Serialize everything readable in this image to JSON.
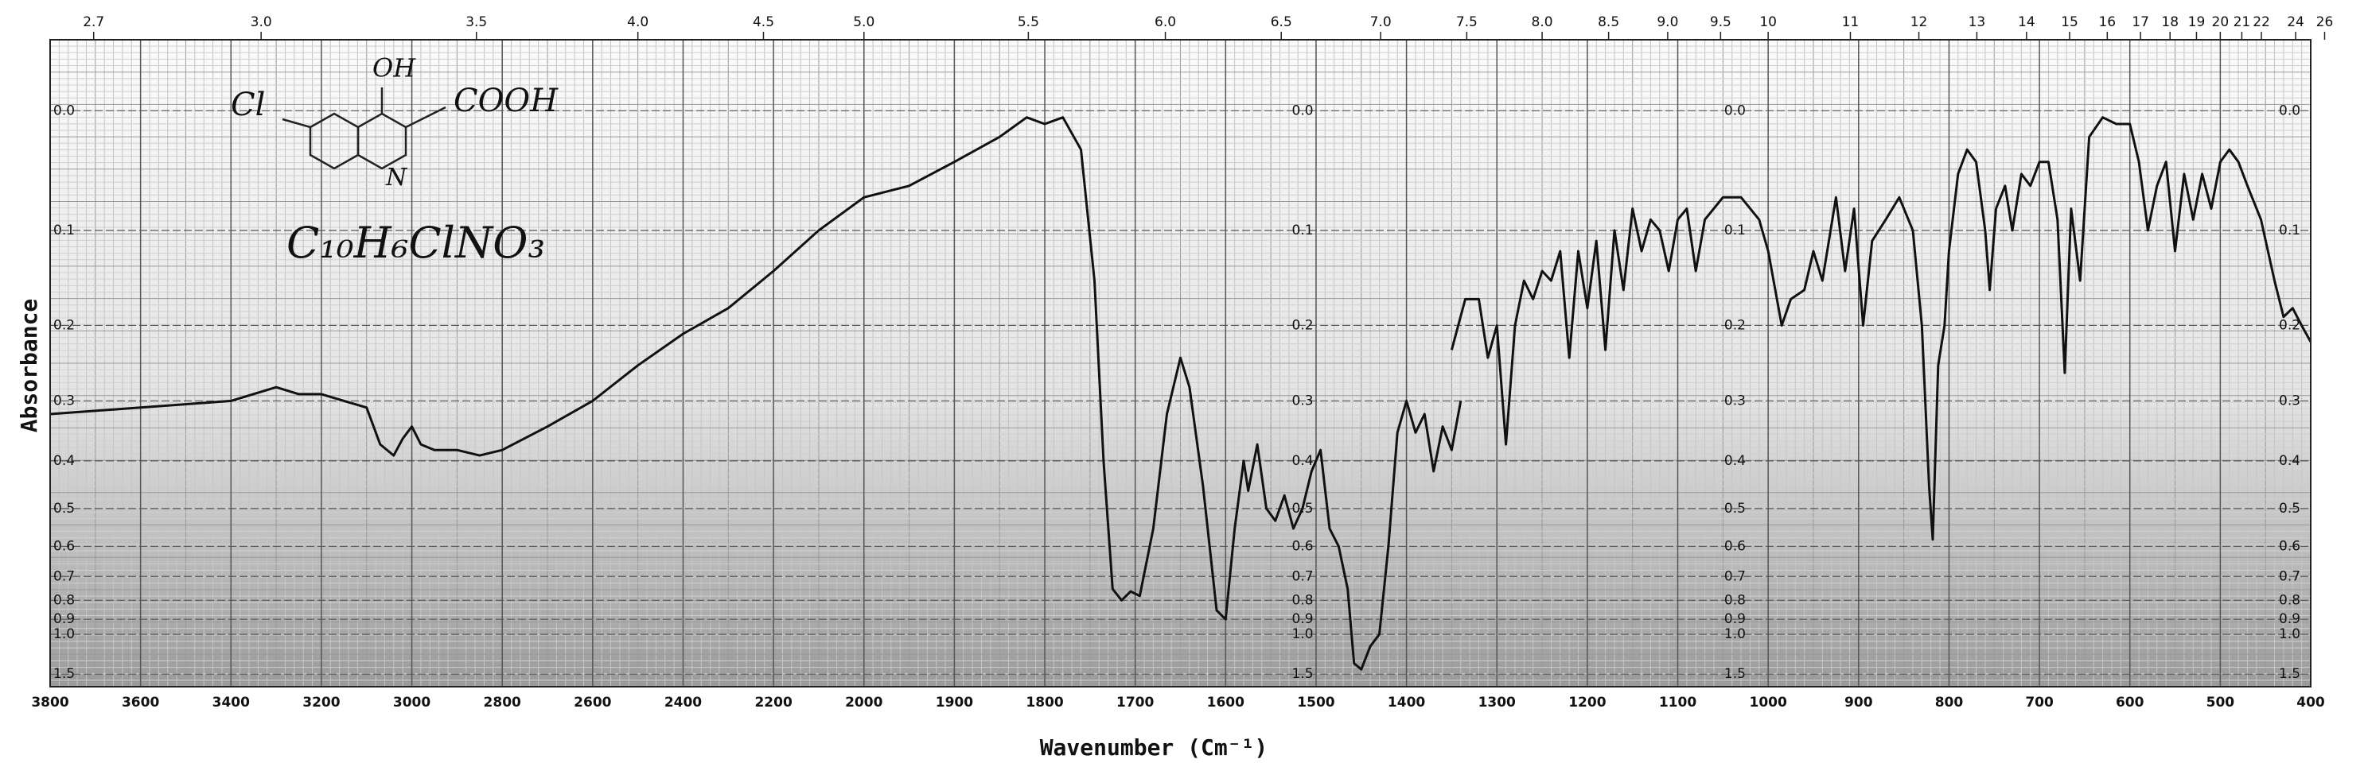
{
  "chart_data": {
    "type": "line",
    "xlabel": "Wavenumber (Cm⁻¹)",
    "ylabel": "Absorbance",
    "annotation": "C₁₀H₆ClNO₃",
    "structure_labels": [
      "Cl",
      "OH",
      "COOH",
      "N"
    ],
    "yscale": "absorbance",
    "grid": true,
    "color": "#111111",
    "xlim": [
      3800,
      400
    ],
    "xticks": [
      3800,
      3600,
      3400,
      3200,
      3000,
      2800,
      2600,
      2400,
      2200,
      2000,
      1900,
      1800,
      1700,
      1600,
      1500,
      1400,
      1300,
      1200,
      1100,
      1000,
      900,
      800,
      700,
      600,
      500,
      400
    ],
    "x2ticks": [
      2.7,
      {
        "value": 3,
        "label": "3.0"
      },
      3.5,
      {
        "value": 4,
        "label": "4.0"
      },
      4.5,
      {
        "value": 5,
        "label": "5.0"
      },
      5.5,
      {
        "value": 6,
        "label": "6.0"
      },
      6.5,
      {
        "value": 7,
        "label": "7.0"
      },
      7.5,
      {
        "value": 8,
        "label": "8.0"
      },
      8.5,
      {
        "value": 9,
        "label": "9.0"
      },
      9.5,
      10,
      11,
      12,
      13,
      14,
      15,
      16,
      17,
      18,
      19,
      20,
      21,
      22,
      24,
      26
    ],
    "ylim": [
      2,
      -0.05
    ],
    "yticks": [
      {
        "value": 0,
        "label": "0.0"
      },
      0.1,
      0.2,
      0.3,
      0.4,
      0.5,
      0.6,
      0.7,
      0.8,
      0.9,
      {
        "value": 1,
        "label": "1.0"
      },
      1.5
    ],
    "x": [
      3800,
      3600,
      3400,
      3300,
      3250,
      3200,
      3150,
      3100,
      3070,
      3040,
      3020,
      3000,
      2980,
      2950,
      2900,
      2850,
      2800,
      2700,
      2600,
      2500,
      2400,
      2300,
      2200,
      2100,
      2000,
      1950,
      1900,
      1850,
      1820,
      1800,
      1780,
      1760,
      1745,
      1735,
      1725,
      1715,
      1705,
      1695,
      1680,
      1665,
      1650,
      1640,
      1625,
      1610,
      1600,
      1590,
      1580,
      1575,
      1565,
      1555,
      1545,
      1535,
      1525,
      1515,
      1505,
      1495,
      1485,
      1475,
      1465,
      1458,
      1450,
      1440,
      1430,
      1420,
      1410,
      1400,
      1390,
      1380,
      1370,
      1360,
      1350,
      1340,
      1345,
      1350,
      1335,
      1320,
      1310,
      1300,
      1290,
      1280,
      1270,
      1260,
      1250,
      1240,
      1230,
      1220,
      1210,
      1200,
      1190,
      1180,
      1170,
      1160,
      1150,
      1140,
      1130,
      1120,
      1110,
      1100,
      1090,
      1080,
      1070,
      1050,
      1030,
      1010,
      1000,
      985,
      975,
      960,
      950,
      940,
      925,
      915,
      905,
      895,
      885,
      870,
      855,
      840,
      830,
      822,
      818,
      812,
      805,
      800,
      790,
      780,
      770,
      760,
      755,
      748,
      738,
      730,
      720,
      710,
      700,
      690,
      680,
      672,
      665,
      655,
      645,
      630,
      615,
      600,
      590,
      580,
      570,
      560,
      550,
      540,
      530,
      520,
      510,
      500,
      490,
      480,
      470,
      455,
      440,
      430,
      420,
      410,
      400
    ],
    "values": [
      0.32,
      0.31,
      0.3,
      0.28,
      0.29,
      0.29,
      0.3,
      0.31,
      0.37,
      0.39,
      0.36,
      0.34,
      0.37,
      0.38,
      0.38,
      0.39,
      0.38,
      0.34,
      0.3,
      0.25,
      0.21,
      0.18,
      0.14,
      0.1,
      0.07,
      0.06,
      0.04,
      0.02,
      0.005,
      0.01,
      0.005,
      0.03,
      0.15,
      0.4,
      0.75,
      0.8,
      0.76,
      0.78,
      0.55,
      0.32,
      0.24,
      0.28,
      0.45,
      0.85,
      0.9,
      0.55,
      0.4,
      0.46,
      0.37,
      0.5,
      0.53,
      0.47,
      0.55,
      0.5,
      0.42,
      0.38,
      0.55,
      0.6,
      0.75,
      1.3,
      1.4,
      1.1,
      1.0,
      0.6,
      0.35,
      0.3,
      0.35,
      0.32,
      0.42,
      0.34,
      0.38,
      0.3,
      null,
      0.23,
      0.17,
      0.17,
      0.24,
      0.2,
      0.37,
      0.2,
      0.15,
      0.17,
      0.14,
      0.15,
      0.12,
      0.24,
      0.12,
      0.18,
      0.11,
      0.23,
      0.1,
      0.16,
      0.08,
      0.12,
      0.09,
      0.1,
      0.14,
      0.09,
      0.08,
      0.14,
      0.09,
      0.07,
      0.07,
      0.09,
      0.12,
      0.2,
      0.17,
      0.16,
      0.12,
      0.15,
      0.07,
      0.14,
      0.08,
      0.2,
      0.11,
      0.09,
      0.07,
      0.1,
      0.2,
      0.45,
      0.58,
      0.25,
      0.2,
      0.12,
      0.05,
      0.03,
      0.04,
      0.1,
      0.16,
      0.08,
      0.06,
      0.1,
      0.05,
      0.06,
      0.04,
      0.04,
      0.09,
      0.26,
      0.08,
      0.15,
      0.02,
      0.005,
      0.01,
      0.01,
      0.04,
      0.1,
      0.06,
      0.04,
      0.12,
      0.05,
      0.09,
      0.05,
      0.08,
      0.04,
      0.03,
      0.04,
      0.06,
      0.09,
      0.15,
      0.19,
      0.18,
      0.2,
      0.22
    ]
  }
}
